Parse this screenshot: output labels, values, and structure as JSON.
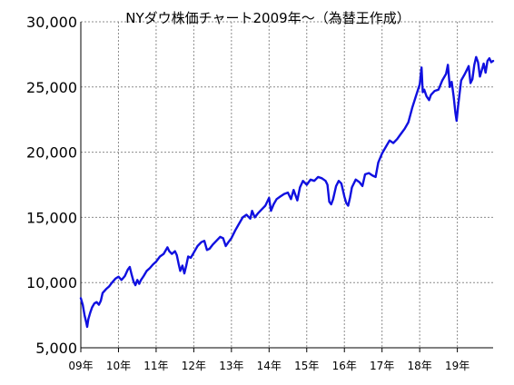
{
  "chart_data": {
    "type": "line",
    "title": "NYダウ株価チャート2009年～（為替王作成）",
    "xlabel": "",
    "ylabel": "",
    "x_domain": [
      2009.0,
      2019.95
    ],
    "ylim": [
      5000,
      30000
    ],
    "y_ticks": [
      5000,
      10000,
      15000,
      20000,
      25000,
      30000
    ],
    "y_tick_labels": [
      "5,000",
      "10,000",
      "15,000",
      "20,000",
      "25,000",
      "30,000"
    ],
    "x_ticks": [
      2009,
      2010,
      2011,
      2012,
      2013,
      2014,
      2015,
      2016,
      2017,
      2018,
      2019
    ],
    "x_tick_labels": [
      "09年",
      "10年",
      "11年",
      "12年",
      "13年",
      "14年",
      "15年",
      "16年",
      "17年",
      "18年",
      "19年"
    ],
    "grid": true,
    "legend": "none",
    "series": [
      {
        "color": "#1010e0",
        "points": [
          [
            2009.0,
            8800
          ],
          [
            2009.05,
            8300
          ],
          [
            2009.1,
            7500
          ],
          [
            2009.14,
            7000
          ],
          [
            2009.17,
            6600
          ],
          [
            2009.2,
            7200
          ],
          [
            2009.25,
            7700
          ],
          [
            2009.3,
            8100
          ],
          [
            2009.36,
            8400
          ],
          [
            2009.42,
            8500
          ],
          [
            2009.48,
            8300
          ],
          [
            2009.53,
            8600
          ],
          [
            2009.58,
            9200
          ],
          [
            2009.67,
            9500
          ],
          [
            2009.75,
            9700
          ],
          [
            2009.83,
            10000
          ],
          [
            2009.92,
            10300
          ],
          [
            2010.0,
            10450
          ],
          [
            2010.08,
            10200
          ],
          [
            2010.17,
            10500
          ],
          [
            2010.25,
            11000
          ],
          [
            2010.3,
            11200
          ],
          [
            2010.35,
            10600
          ],
          [
            2010.4,
            10100
          ],
          [
            2010.45,
            9800
          ],
          [
            2010.5,
            10200
          ],
          [
            2010.55,
            9900
          ],
          [
            2010.6,
            10200
          ],
          [
            2010.67,
            10500
          ],
          [
            2010.75,
            10900
          ],
          [
            2010.83,
            11100
          ],
          [
            2010.92,
            11400
          ],
          [
            2011.0,
            11600
          ],
          [
            2011.1,
            12000
          ],
          [
            2011.2,
            12200
          ],
          [
            2011.3,
            12700
          ],
          [
            2011.35,
            12400
          ],
          [
            2011.42,
            12200
          ],
          [
            2011.5,
            12400
          ],
          [
            2011.55,
            12100
          ],
          [
            2011.6,
            11400
          ],
          [
            2011.64,
            10900
          ],
          [
            2011.7,
            11300
          ],
          [
            2011.75,
            10700
          ],
          [
            2011.8,
            11300
          ],
          [
            2011.85,
            12000
          ],
          [
            2011.92,
            11900
          ],
          [
            2012.0,
            12300
          ],
          [
            2012.1,
            12800
          ],
          [
            2012.2,
            13100
          ],
          [
            2012.28,
            13200
          ],
          [
            2012.35,
            12500
          ],
          [
            2012.42,
            12600
          ],
          [
            2012.5,
            12900
          ],
          [
            2012.6,
            13200
          ],
          [
            2012.7,
            13500
          ],
          [
            2012.78,
            13400
          ],
          [
            2012.85,
            12800
          ],
          [
            2012.92,
            13100
          ],
          [
            2013.0,
            13400
          ],
          [
            2013.1,
            14000
          ],
          [
            2013.2,
            14500
          ],
          [
            2013.3,
            15000
          ],
          [
            2013.4,
            15200
          ],
          [
            2013.5,
            14900
          ],
          [
            2013.55,
            15500
          ],
          [
            2013.62,
            15000
          ],
          [
            2013.7,
            15300
          ],
          [
            2013.8,
            15600
          ],
          [
            2013.9,
            15900
          ],
          [
            2014.0,
            16500
          ],
          [
            2014.05,
            15500
          ],
          [
            2014.12,
            16000
          ],
          [
            2014.2,
            16400
          ],
          [
            2014.3,
            16600
          ],
          [
            2014.4,
            16800
          ],
          [
            2014.5,
            16900
          ],
          [
            2014.58,
            16400
          ],
          [
            2014.65,
            17100
          ],
          [
            2014.75,
            16300
          ],
          [
            2014.82,
            17300
          ],
          [
            2014.9,
            17800
          ],
          [
            2015.0,
            17500
          ],
          [
            2015.1,
            17900
          ],
          [
            2015.2,
            17800
          ],
          [
            2015.3,
            18100
          ],
          [
            2015.4,
            18000
          ],
          [
            2015.5,
            17800
          ],
          [
            2015.55,
            17500
          ],
          [
            2015.6,
            16200
          ],
          [
            2015.65,
            16000
          ],
          [
            2015.7,
            16400
          ],
          [
            2015.78,
            17400
          ],
          [
            2015.85,
            17800
          ],
          [
            2015.92,
            17600
          ],
          [
            2016.0,
            16600
          ],
          [
            2016.05,
            16100
          ],
          [
            2016.1,
            15900
          ],
          [
            2016.15,
            16500
          ],
          [
            2016.2,
            17300
          ],
          [
            2016.3,
            17900
          ],
          [
            2016.4,
            17700
          ],
          [
            2016.48,
            17400
          ],
          [
            2016.55,
            18300
          ],
          [
            2016.65,
            18400
          ],
          [
            2016.75,
            18200
          ],
          [
            2016.83,
            18100
          ],
          [
            2016.9,
            19200
          ],
          [
            2017.0,
            19900
          ],
          [
            2017.1,
            20400
          ],
          [
            2017.2,
            20900
          ],
          [
            2017.3,
            20700
          ],
          [
            2017.4,
            21000
          ],
          [
            2017.5,
            21400
          ],
          [
            2017.6,
            21800
          ],
          [
            2017.7,
            22300
          ],
          [
            2017.8,
            23400
          ],
          [
            2017.9,
            24300
          ],
          [
            2018.0,
            25200
          ],
          [
            2018.05,
            26500
          ],
          [
            2018.08,
            24600
          ],
          [
            2018.12,
            24800
          ],
          [
            2018.18,
            24300
          ],
          [
            2018.25,
            24000
          ],
          [
            2018.3,
            24400
          ],
          [
            2018.4,
            24700
          ],
          [
            2018.5,
            24800
          ],
          [
            2018.6,
            25500
          ],
          [
            2018.7,
            26000
          ],
          [
            2018.75,
            26700
          ],
          [
            2018.8,
            25000
          ],
          [
            2018.85,
            25400
          ],
          [
            2018.9,
            24300
          ],
          [
            2018.95,
            23000
          ],
          [
            2018.98,
            22400
          ],
          [
            2019.02,
            23500
          ],
          [
            2019.1,
            25500
          ],
          [
            2019.2,
            26000
          ],
          [
            2019.3,
            26600
          ],
          [
            2019.35,
            25300
          ],
          [
            2019.4,
            25600
          ],
          [
            2019.45,
            26700
          ],
          [
            2019.5,
            27300
          ],
          [
            2019.55,
            26900
          ],
          [
            2019.6,
            25800
          ],
          [
            2019.65,
            26300
          ],
          [
            2019.7,
            26800
          ],
          [
            2019.75,
            26100
          ],
          [
            2019.8,
            27000
          ],
          [
            2019.85,
            27200
          ],
          [
            2019.9,
            26900
          ],
          [
            2019.95,
            27000
          ]
        ]
      }
    ]
  }
}
